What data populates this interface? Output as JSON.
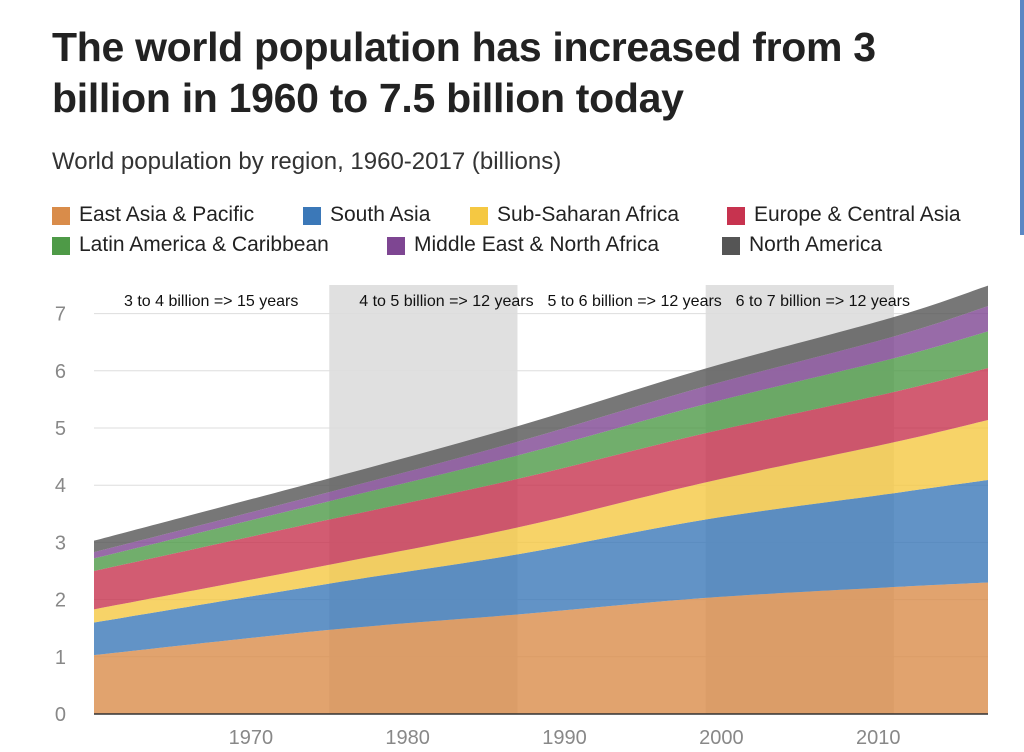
{
  "title": "The world population has increased from 3 billion in 1960 to 7.5 billion today",
  "subtitle": "World population by region, 1960-2017 (billions)",
  "legend": [
    {
      "label": "East Asia & Pacific",
      "color": "#d98c4a"
    },
    {
      "label": "South Asia",
      "color": "#3b78b8"
    },
    {
      "label": "Sub-Saharan Africa",
      "color": "#f5c842"
    },
    {
      "label": "Europe & Central Asia",
      "color": "#c7334f"
    },
    {
      "label": "Latin America & Caribbean",
      "color": "#4e9a47"
    },
    {
      "label": "Middle East & North Africa",
      "color": "#7e4692"
    },
    {
      "label": "North America",
      "color": "#555555"
    }
  ],
  "chart_data": {
    "type": "area",
    "stacked": true,
    "title": "The world population has increased from 3 billion in 1960 to 7.5 billion today",
    "subtitle": "World population by region, 1960-2017 (billions)",
    "xlabel": "",
    "ylabel": "",
    "xlim": [
      1960,
      2017
    ],
    "ylim": [
      0,
      7.5
    ],
    "x_ticks": [
      1970,
      1980,
      1990,
      2000,
      2010
    ],
    "y_ticks": [
      0,
      1,
      2,
      3,
      4,
      5,
      6,
      7
    ],
    "grid": "horizontal",
    "legend_position": "top",
    "x": [
      1960,
      1975,
      1987,
      1999,
      2011,
      2017
    ],
    "series": [
      {
        "name": "East Asia & Pacific",
        "color": "#d98c4a",
        "values": [
          1.03,
          1.47,
          1.74,
          2.03,
          2.22,
          2.3
        ]
      },
      {
        "name": "South Asia",
        "color": "#3b78b8",
        "values": [
          0.57,
          0.81,
          1.05,
          1.37,
          1.64,
          1.79
        ]
      },
      {
        "name": "Sub-Saharan Africa",
        "color": "#f5c842",
        "values": [
          0.23,
          0.33,
          0.47,
          0.65,
          0.89,
          1.05
        ]
      },
      {
        "name": "Europe & Central Asia",
        "color": "#c7334f",
        "values": [
          0.67,
          0.79,
          0.85,
          0.86,
          0.88,
          0.91
        ]
      },
      {
        "name": "Latin America & Caribbean",
        "color": "#4e9a47",
        "values": [
          0.22,
          0.32,
          0.41,
          0.51,
          0.59,
          0.64
        ]
      },
      {
        "name": "Middle East & North Africa",
        "color": "#7e4692",
        "values": [
          0.11,
          0.16,
          0.24,
          0.31,
          0.38,
          0.44
        ]
      },
      {
        "name": "North America",
        "color": "#555555",
        "values": [
          0.2,
          0.24,
          0.27,
          0.31,
          0.34,
          0.36
        ]
      }
    ],
    "shaded_periods": [
      {
        "start": 1975,
        "end": 1987
      },
      {
        "start": 1999,
        "end": 2011
      }
    ],
    "annotations": [
      {
        "text": "3 to 4 billion => 15 years",
        "x": 1960
      },
      {
        "text": "4 to 5 billion => 12 years",
        "x": 1975
      },
      {
        "text": "5 to 6 billion => 12 years",
        "x": 1987
      },
      {
        "text": "6 to 7 billion => 12 years",
        "x": 1999
      }
    ]
  }
}
